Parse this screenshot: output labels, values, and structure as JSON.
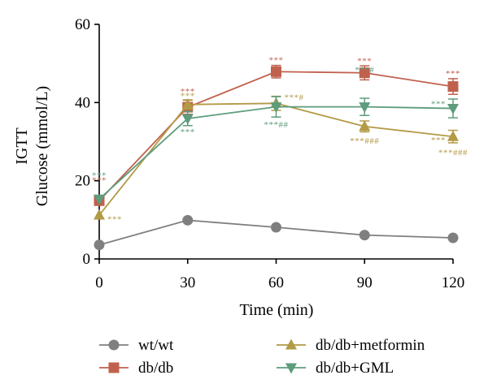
{
  "chart_data": {
    "type": "line",
    "ylabel_line1": "IGTT",
    "ylabel_line2": "Glucose (mmol/L)",
    "xlabel": "Time (min)",
    "x": [
      0,
      30,
      60,
      90,
      120
    ],
    "xlim": [
      0,
      120
    ],
    "ylim": [
      0,
      60
    ],
    "x_ticks": [
      0,
      30,
      60,
      90,
      120
    ],
    "y_ticks": [
      0,
      20,
      40,
      60
    ],
    "grid": false,
    "legend_position": "bottom",
    "series": [
      {
        "name": "wt/wt",
        "marker": "circle",
        "color": "#7f7f7f",
        "values": [
          3.6,
          9.9,
          8.1,
          6.1,
          5.4
        ],
        "errors": [
          0,
          0,
          0,
          0,
          0
        ]
      },
      {
        "name": "db/db",
        "marker": "square",
        "color": "#c0614d",
        "values": [
          14.9,
          38.8,
          47.9,
          47.6,
          44.1
        ],
        "errors": [
          0,
          1.8,
          1.6,
          1.8,
          2.0
        ]
      },
      {
        "name": "db/db+metformin",
        "marker": "triangle-up",
        "color": "#b39a45",
        "values": [
          11.2,
          39.5,
          39.8,
          33.9,
          31.3
        ],
        "errors": [
          0,
          1.2,
          1.8,
          1.4,
          1.6
        ]
      },
      {
        "name": "db/db+GML",
        "marker": "triangle-down",
        "color": "#5d9c7c",
        "values": [
          15.3,
          35.9,
          38.9,
          38.9,
          38.5
        ],
        "errors": [
          0,
          1.8,
          2.6,
          2.2,
          2.4
        ]
      }
    ],
    "annotations": [
      {
        "text": "***",
        "x": 0,
        "y": 21.5,
        "color": "#5d9c7c"
      },
      {
        "text": "***",
        "x": 0,
        "y": 20.2,
        "color": "#c0614d"
      },
      {
        "text": "***",
        "x": 0,
        "y": 10.3,
        "color": "#b39a45",
        "side": "right"
      },
      {
        "text": "***",
        "x": 30,
        "y": 43.0,
        "color": "#c0614d"
      },
      {
        "text": "***",
        "x": 30,
        "y": 41.8,
        "color": "#b39a45"
      },
      {
        "text": "***",
        "x": 30,
        "y": 32.6,
        "color": "#5d9c7c"
      },
      {
        "text": "***",
        "x": 60,
        "y": 51.0,
        "color": "#c0614d"
      },
      {
        "text": "***#",
        "x": 60,
        "y": 41.4,
        "color": "#b39a45",
        "side": "right"
      },
      {
        "text": "***##",
        "x": 60,
        "y": 34.5,
        "color": "#5d9c7c"
      },
      {
        "text": "***",
        "x": 90,
        "y": 50.8,
        "color": "#c0614d"
      },
      {
        "text": "***#",
        "x": 90,
        "y": 48.5,
        "color": "#5d9c7c"
      },
      {
        "text": "***###",
        "x": 90,
        "y": 30.3,
        "color": "#b39a45"
      },
      {
        "text": "***",
        "x": 120,
        "y": 47.5,
        "color": "#c0614d"
      },
      {
        "text": "***",
        "x": 120,
        "y": 39.8,
        "color": "#5d9c7c",
        "side": "left"
      },
      {
        "text": "***",
        "x": 120,
        "y": 30.5,
        "color": "#b39a45",
        "side": "left"
      },
      {
        "text": "***###",
        "x": 120,
        "y": 27.3,
        "color": "#b39a45"
      }
    ]
  }
}
